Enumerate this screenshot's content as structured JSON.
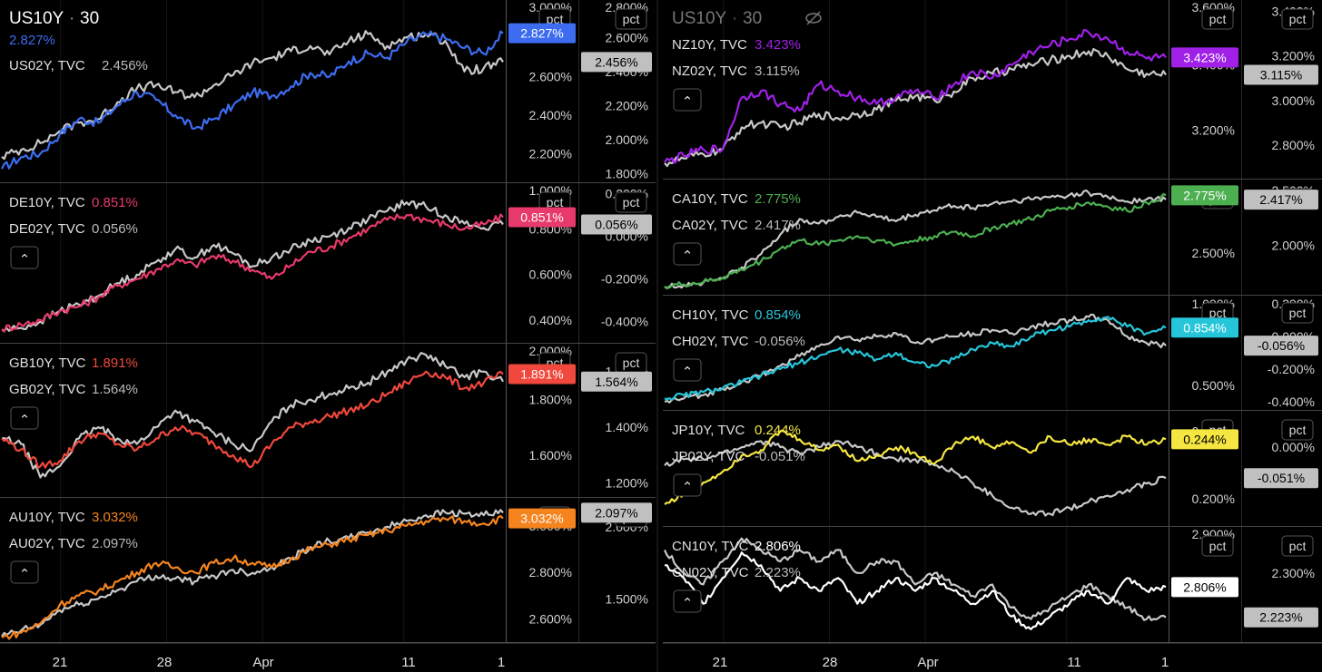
{
  "header": {
    "left_symbol": "US10Y",
    "left_interval": "30",
    "left_value": "2.827%",
    "right_symbol": "US10Y",
    "right_interval": "30"
  },
  "pct_label": "pct",
  "collapse_glyph": "⌃",
  "time_axis": {
    "left_labels": [
      "21",
      "28",
      "Apr",
      "11",
      "1"
    ],
    "right_labels": [
      "21",
      "28",
      "Apr",
      "11",
      "1"
    ]
  },
  "chart_data": [
    {
      "type": "line",
      "pane": "left-1",
      "series": [
        {
          "name": "US10Y",
          "label": "",
          "value": "2.827%",
          "color": "#3d6cf0",
          "y": [
            2.12,
            2.18,
            2.2,
            2.3,
            2.38,
            2.36,
            2.45,
            2.52,
            2.48,
            2.4,
            2.33,
            2.38,
            2.45,
            2.52,
            2.5,
            2.55,
            2.62,
            2.6,
            2.68,
            2.72,
            2.7,
            2.78,
            2.82,
            2.8,
            2.75,
            2.72,
            2.827
          ]
        },
        {
          "name": "US02Y",
          "label": "US02Y, TVC",
          "value": "2.456%",
          "color": "#c8c8c8",
          "y": [
            1.9,
            1.94,
            1.98,
            2.05,
            2.1,
            2.12,
            2.22,
            2.3,
            2.32,
            2.28,
            2.25,
            2.32,
            2.38,
            2.45,
            2.48,
            2.52,
            2.55,
            2.5,
            2.58,
            2.62,
            2.55,
            2.6,
            2.62,
            2.58,
            2.4,
            2.42,
            2.456
          ]
        }
      ],
      "axes": [
        {
          "ticks": [
            "3.000%",
            "2.600%",
            "2.400%",
            "2.200%"
          ],
          "ylim": [
            2.05,
            3.0
          ],
          "tag": "2.827%",
          "tag_value": 2.827
        },
        {
          "ticks": [
            "2.800%",
            "2.600%",
            "2.400%",
            "2.200%",
            "2.000%",
            "1.800%"
          ],
          "ylim": [
            1.75,
            2.82
          ],
          "tag": "2.456%",
          "tag_value": 2.456
        }
      ]
    },
    {
      "type": "line",
      "pane": "left-2",
      "series": [
        {
          "name": "DE10Y",
          "label": "DE10Y, TVC",
          "value": "0.851%",
          "color": "#e83a6a",
          "y": [
            0.36,
            0.38,
            0.4,
            0.44,
            0.46,
            0.5,
            0.55,
            0.58,
            0.62,
            0.66,
            0.64,
            0.68,
            0.66,
            0.62,
            0.58,
            0.64,
            0.7,
            0.72,
            0.76,
            0.8,
            0.84,
            0.86,
            0.84,
            0.82,
            0.8,
            0.82,
            0.851
          ]
        },
        {
          "name": "DE02Y",
          "label": "DE02Y, TVC",
          "value": "0.056%",
          "color": "#c8c8c8",
          "y": [
            -0.44,
            -0.43,
            -0.4,
            -0.35,
            -0.32,
            -0.28,
            -0.22,
            -0.18,
            -0.12,
            -0.06,
            -0.1,
            -0.04,
            -0.08,
            -0.14,
            -0.1,
            -0.06,
            -0.02,
            0.0,
            0.04,
            0.08,
            0.12,
            0.16,
            0.14,
            0.1,
            0.06,
            0.04,
            0.056
          ]
        }
      ],
      "axes": [
        {
          "ticks": [
            "1.000%",
            "0.800%",
            "0.600%",
            "0.400%"
          ],
          "ylim": [
            0.3,
            1.0
          ],
          "tag": "0.851%",
          "tag_value": 0.851
        },
        {
          "ticks": [
            "0.200%",
            "0.000%",
            "-0.200%",
            "-0.400%"
          ],
          "ylim": [
            -0.5,
            0.25
          ],
          "tag": "0.056%",
          "tag_value": 0.056
        }
      ]
    },
    {
      "type": "line",
      "pane": "left-3",
      "series": [
        {
          "name": "GB10Y",
          "label": "GB10Y, TVC",
          "value": "1.891%",
          "color": "#f0483c",
          "y": [
            1.66,
            1.62,
            1.56,
            1.58,
            1.65,
            1.68,
            1.64,
            1.62,
            1.66,
            1.7,
            1.68,
            1.64,
            1.6,
            1.56,
            1.64,
            1.7,
            1.72,
            1.74,
            1.76,
            1.78,
            1.82,
            1.86,
            1.9,
            1.88,
            1.84,
            1.86,
            1.891
          ]
        },
        {
          "name": "GB02Y",
          "label": "GB02Y, TVC",
          "value": "1.564%",
          "color": "#c8c8c8",
          "y": [
            1.36,
            1.34,
            1.22,
            1.26,
            1.36,
            1.4,
            1.36,
            1.34,
            1.4,
            1.46,
            1.42,
            1.38,
            1.34,
            1.32,
            1.42,
            1.48,
            1.5,
            1.52,
            1.54,
            1.56,
            1.6,
            1.64,
            1.66,
            1.62,
            1.58,
            1.6,
            1.564
          ]
        }
      ],
      "axes": [
        {
          "ticks": [
            "2.000%",
            "1.800%",
            "1.600%"
          ],
          "ylim": [
            1.45,
            2.0
          ],
          "tag": "1.891%",
          "tag_value": 1.891
        },
        {
          "ticks": [
            "1.600%",
            "1.400%",
            "1.200%"
          ],
          "ylim": [
            1.15,
            1.7
          ],
          "tag": "1.564%",
          "tag_value": 1.564
        }
      ]
    },
    {
      "type": "line",
      "pane": "left-4",
      "series": [
        {
          "name": "AU10Y",
          "label": "AU10Y, TVC",
          "value": "3.032%",
          "color": "#f5841f",
          "y": [
            2.52,
            2.54,
            2.58,
            2.66,
            2.7,
            2.72,
            2.76,
            2.8,
            2.84,
            2.82,
            2.8,
            2.84,
            2.86,
            2.84,
            2.82,
            2.86,
            2.9,
            2.92,
            2.94,
            2.96,
            2.98,
            3.0,
            3.02,
            3.03,
            3.02,
            3.01,
            3.032
          ]
        },
        {
          "name": "AU02Y",
          "label": "AU02Y, TVC",
          "value": "2.097%",
          "color": "#c8c8c8",
          "y": [
            1.24,
            1.28,
            1.32,
            1.42,
            1.46,
            1.5,
            1.56,
            1.62,
            1.66,
            1.64,
            1.62,
            1.66,
            1.7,
            1.68,
            1.72,
            1.78,
            1.86,
            1.9,
            1.92,
            1.96,
            2.0,
            2.04,
            2.08,
            2.1,
            2.09,
            2.08,
            2.097
          ]
        }
      ],
      "axes": [
        {
          "ticks": [
            "3.000%",
            "2.800%",
            "2.600%"
          ],
          "ylim": [
            2.5,
            3.12
          ],
          "tag": "3.032%",
          "tag_value": 3.032
        },
        {
          "ticks": [
            "2.000%",
            "1.500%"
          ],
          "ylim": [
            1.2,
            2.2
          ],
          "tag": "2.097%",
          "tag_value": 2.097
        }
      ]
    },
    {
      "type": "line",
      "pane": "right-1",
      "series": [
        {
          "name": "NZ10Y",
          "label": "NZ10Y, TVC",
          "value": "3.423%",
          "color": "#a020e8",
          "y": [
            3.1,
            3.12,
            3.14,
            3.14,
            3.3,
            3.32,
            3.28,
            3.26,
            3.34,
            3.32,
            3.3,
            3.28,
            3.3,
            3.32,
            3.3,
            3.34,
            3.38,
            3.36,
            3.4,
            3.44,
            3.46,
            3.48,
            3.5,
            3.48,
            3.44,
            3.42,
            3.423
          ]
        },
        {
          "name": "NZ02Y",
          "label": "NZ02Y, TVC",
          "value": "3.115%",
          "color": "#c8c8c8",
          "y": [
            2.72,
            2.74,
            2.76,
            2.78,
            2.88,
            2.9,
            2.88,
            2.9,
            2.94,
            2.92,
            2.94,
            2.96,
            3.0,
            3.02,
            3.0,
            3.04,
            3.1,
            3.12,
            3.14,
            3.16,
            3.18,
            3.2,
            3.22,
            3.2,
            3.14,
            3.12,
            3.115
          ]
        }
      ],
      "axes": [
        {
          "ticks": [
            "3.600%",
            "3.400%",
            "3.200%"
          ],
          "ylim": [
            3.05,
            3.6
          ],
          "tag": "3.423%",
          "tag_value": 3.423
        },
        {
          "ticks": [
            "3.400%",
            "3.200%",
            "3.000%",
            "2.800%"
          ],
          "ylim": [
            2.65,
            3.45
          ],
          "tag": "3.115%",
          "tag_value": 3.115
        }
      ]
    },
    {
      "type": "line",
      "pane": "right-2",
      "series": [
        {
          "name": "CA10Y",
          "label": "CA10Y, TVC",
          "value": "2.775%",
          "color": "#4caf50",
          "y": [
            2.34,
            2.35,
            2.36,
            2.38,
            2.42,
            2.46,
            2.52,
            2.56,
            2.54,
            2.56,
            2.58,
            2.56,
            2.54,
            2.56,
            2.58,
            2.6,
            2.58,
            2.62,
            2.64,
            2.66,
            2.7,
            2.72,
            2.74,
            2.72,
            2.7,
            2.74,
            2.775
          ]
        },
        {
          "name": "CA02Y",
          "label": "CA02Y, TVC",
          "value": "2.417%",
          "color": "#c8c8c8",
          "y": [
            1.62,
            1.64,
            1.66,
            1.7,
            1.8,
            1.92,
            2.1,
            2.24,
            2.2,
            2.26,
            2.3,
            2.26,
            2.22,
            2.28,
            2.32,
            2.36,
            2.34,
            2.38,
            2.4,
            2.42,
            2.44,
            2.46,
            2.48,
            2.44,
            2.4,
            2.42,
            2.417
          ]
        }
      ],
      "axes": [
        {
          "ticks": [
            "2.800%",
            "2.500%"
          ],
          "ylim": [
            2.3,
            2.85
          ],
          "tag": "2.775%",
          "tag_value": 2.775
        },
        {
          "ticks": [
            "2.500%",
            "2.000%"
          ],
          "ylim": [
            1.55,
            2.6
          ],
          "tag": "2.417%",
          "tag_value": 2.417
        }
      ]
    },
    {
      "type": "line",
      "pane": "right-3",
      "series": [
        {
          "name": "CH10Y",
          "label": "CH10Y, TVC",
          "value": "0.854%",
          "color": "#26c6da",
          "y": [
            0.42,
            0.44,
            0.46,
            0.48,
            0.52,
            0.56,
            0.6,
            0.64,
            0.68,
            0.72,
            0.7,
            0.66,
            0.7,
            0.64,
            0.62,
            0.66,
            0.72,
            0.76,
            0.74,
            0.8,
            0.84,
            0.86,
            0.9,
            0.92,
            0.86,
            0.82,
            0.854
          ]
        },
        {
          "name": "CH02Y",
          "label": "CH02Y, TVC",
          "value": "-0.056%",
          "color": "#c8c8c8",
          "y": [
            -0.4,
            -0.38,
            -0.36,
            -0.32,
            -0.28,
            -0.24,
            -0.18,
            -0.12,
            -0.06,
            0.0,
            -0.02,
            0.0,
            0.02,
            -0.04,
            -0.02,
            0.0,
            0.02,
            0.04,
            0.02,
            0.06,
            0.08,
            0.1,
            0.12,
            0.1,
            0.0,
            -0.04,
            -0.056
          ]
        }
      ],
      "axes": [
        {
          "ticks": [
            "1.000%",
            "0.500%"
          ],
          "ylim": [
            0.35,
            1.05
          ],
          "tag": "0.854%",
          "tag_value": 0.854
        },
        {
          "ticks": [
            "0.200%",
            "0.000%",
            "-0.200%",
            "-0.400%"
          ],
          "ylim": [
            -0.45,
            0.25
          ],
          "tag": "-0.056%",
          "tag_value": -0.056
        }
      ]
    },
    {
      "type": "line",
      "pane": "right-4",
      "series": [
        {
          "name": "JP10Y",
          "label": "JP10Y, TVC",
          "value": "0.244%",
          "color": "#f5e642",
          "y": [
            0.196,
            0.204,
            0.212,
            0.22,
            0.232,
            0.236,
            0.25,
            0.244,
            0.236,
            0.24,
            0.228,
            0.232,
            0.238,
            0.234,
            0.226,
            0.24,
            0.246,
            0.238,
            0.242,
            0.234,
            0.246,
            0.24,
            0.244,
            0.24,
            0.246,
            0.24,
            0.244
          ]
        },
        {
          "name": "JP02Y",
          "label": "JP02Y, TVC",
          "value": "-0.051%",
          "color": "#c8c8c8",
          "y": [
            -0.03,
            -0.02,
            -0.02,
            -0.01,
            0.0,
            0.01,
            0.0,
            -0.01,
            0.0,
            0.01,
            0.0,
            -0.01,
            -0.02,
            -0.02,
            -0.03,
            -0.04,
            -0.06,
            -0.08,
            -0.1,
            -0.11,
            -0.11,
            -0.1,
            -0.09,
            -0.08,
            -0.07,
            -0.06,
            -0.051
          ]
        }
      ],
      "axes": [
        {
          "ticks": [
            "0.250%",
            "0.200%"
          ],
          "ylim": [
            0.18,
            0.265
          ],
          "tag": "0.244%",
          "tag_value": 0.244
        },
        {
          "ticks": [
            "0.000%"
          ],
          "ylim": [
            -0.13,
            0.06
          ],
          "tag": "-0.051%",
          "tag_value": -0.051
        }
      ]
    },
    {
      "type": "line",
      "pane": "right-5",
      "series": [
        {
          "name": "CN10Y",
          "label": "CN10Y, TVC",
          "value": "2.806%",
          "color": "#ffffff",
          "y": [
            2.84,
            2.82,
            2.78,
            2.82,
            2.86,
            2.84,
            2.8,
            2.82,
            2.8,
            2.82,
            2.78,
            2.8,
            2.82,
            2.8,
            2.82,
            2.8,
            2.78,
            2.8,
            2.76,
            2.74,
            2.76,
            2.78,
            2.8,
            2.78,
            2.82,
            2.8,
            2.806
          ]
        },
        {
          "name": "CN02Y",
          "label": "CN02Y, TVC",
          "value": "2.223%",
          "color": "#c8c8c8",
          "y": [
            2.34,
            2.3,
            2.28,
            2.32,
            2.36,
            2.34,
            2.32,
            2.34,
            2.32,
            2.34,
            2.3,
            2.32,
            2.32,
            2.28,
            2.3,
            2.28,
            2.26,
            2.28,
            2.24,
            2.22,
            2.24,
            2.26,
            2.28,
            2.26,
            2.24,
            2.22,
            2.223
          ]
        }
      ],
      "axes": [
        {
          "ticks": [
            "2.900%",
            "2.800%"
          ],
          "ylim": [
            2.72,
            2.9
          ],
          "tag": "2.806%",
          "tag_value": 2.806
        },
        {
          "ticks": [
            "2.300%"
          ],
          "ylim": [
            2.18,
            2.38
          ],
          "tag": "2.223%",
          "tag_value": 2.223
        }
      ]
    }
  ]
}
